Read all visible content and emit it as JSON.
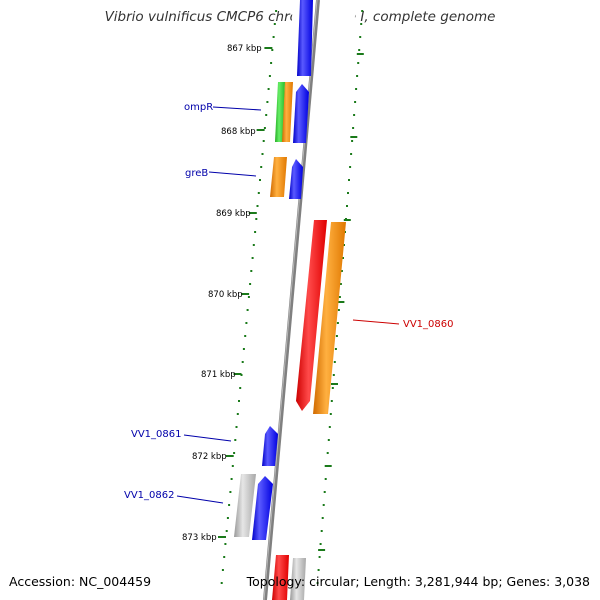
{
  "title": "Vibrio vulnificus CMCP6 chromosome I, complete genome",
  "footer": {
    "accession": "Accession: NC_004459",
    "summary": "Topology: circular; Length: 3,281,944 bp; Genes: 3,038"
  },
  "colors": {
    "backbone": "#808080",
    "tick": "#1a7a1a",
    "label_blue": "#0000aa",
    "label_red": "#cc0000",
    "blue": "#0000ff",
    "red": "#ff0000",
    "orange": "#ff8c00",
    "green": "#33cc33",
    "gray": "#b0b0b0"
  },
  "ticks": [
    "867 kbp",
    "868 kbp",
    "869 kbp",
    "870 kbp",
    "871 kbp",
    "872 kbp",
    "873 kbp"
  ],
  "gene_labels": [
    "ompR",
    "greB",
    "VV1_0860",
    "VV1_0861",
    "VV1_0862"
  ]
}
